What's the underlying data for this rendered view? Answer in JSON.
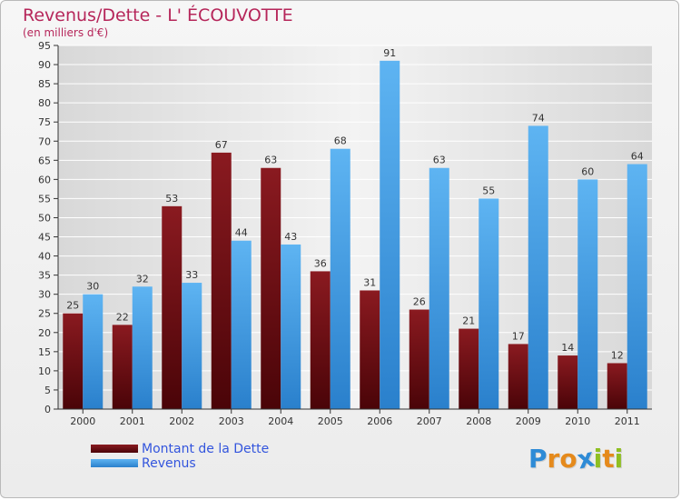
{
  "chart_data": {
    "type": "bar",
    "title": "Revenus/Dette - L' ÉCOUVOTTE",
    "subtitle": "(en milliers d'€)",
    "categories": [
      "2000",
      "2001",
      "2002",
      "2003",
      "2004",
      "2005",
      "2006",
      "2007",
      "2008",
      "2009",
      "2010",
      "2011"
    ],
    "series": [
      {
        "name": "Montant de la Dette",
        "values": [
          25,
          22,
          53,
          67,
          63,
          36,
          31,
          26,
          21,
          17,
          14,
          12
        ],
        "color": "#7a0f16"
      },
      {
        "name": "Revenus",
        "values": [
          30,
          32,
          33,
          44,
          43,
          68,
          91,
          63,
          55,
          74,
          60,
          64
        ],
        "color": "#4ea4e8"
      }
    ],
    "ylim": [
      0,
      95
    ],
    "yticks": [
      0,
      5,
      10,
      15,
      20,
      25,
      30,
      35,
      40,
      45,
      50,
      55,
      60,
      65,
      70,
      75,
      80,
      85,
      90,
      95
    ],
    "grid": true,
    "legend_position": "bottom-left"
  },
  "logo": {
    "text": "Proxiti",
    "letters": [
      "P",
      "r",
      "o",
      "x",
      "i",
      "t",
      "i"
    ],
    "colors": [
      "#2e8bd6",
      "#e58a1c",
      "#e58a1c",
      "#2e8bd6",
      "#8fbf22",
      "#e58a1c",
      "#8fbf22"
    ]
  }
}
